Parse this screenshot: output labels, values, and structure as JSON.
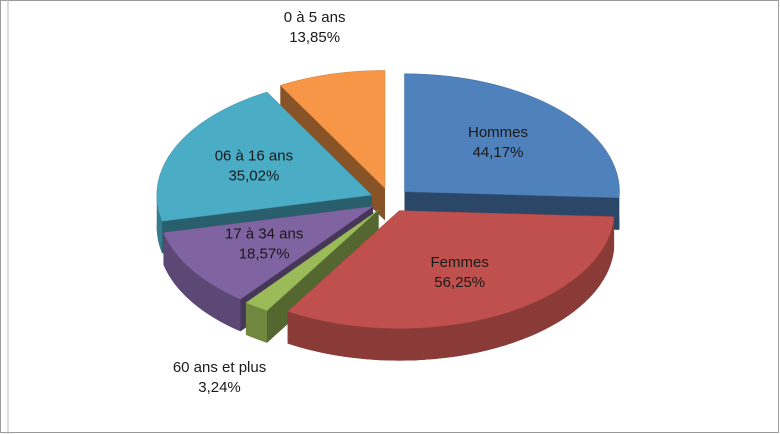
{
  "chart_data": {
    "type": "pie",
    "categories": [
      "Hommes",
      "Femmes",
      "60 ans et plus",
      "17 à 34 ans",
      "06 à 16 ans",
      "0 à 5 ans"
    ],
    "values": [
      44.17,
      56.25,
      3.24,
      18.57,
      35.02,
      13.85
    ],
    "value_labels": [
      "44,17%",
      "56,25%",
      "3,24%",
      "18,57%",
      "35,02%",
      "13,85%"
    ],
    "colors": [
      "#4f81bd",
      "#c0504d",
      "#9bbb59",
      "#8064a2",
      "#4bacc6",
      "#f79646"
    ]
  }
}
